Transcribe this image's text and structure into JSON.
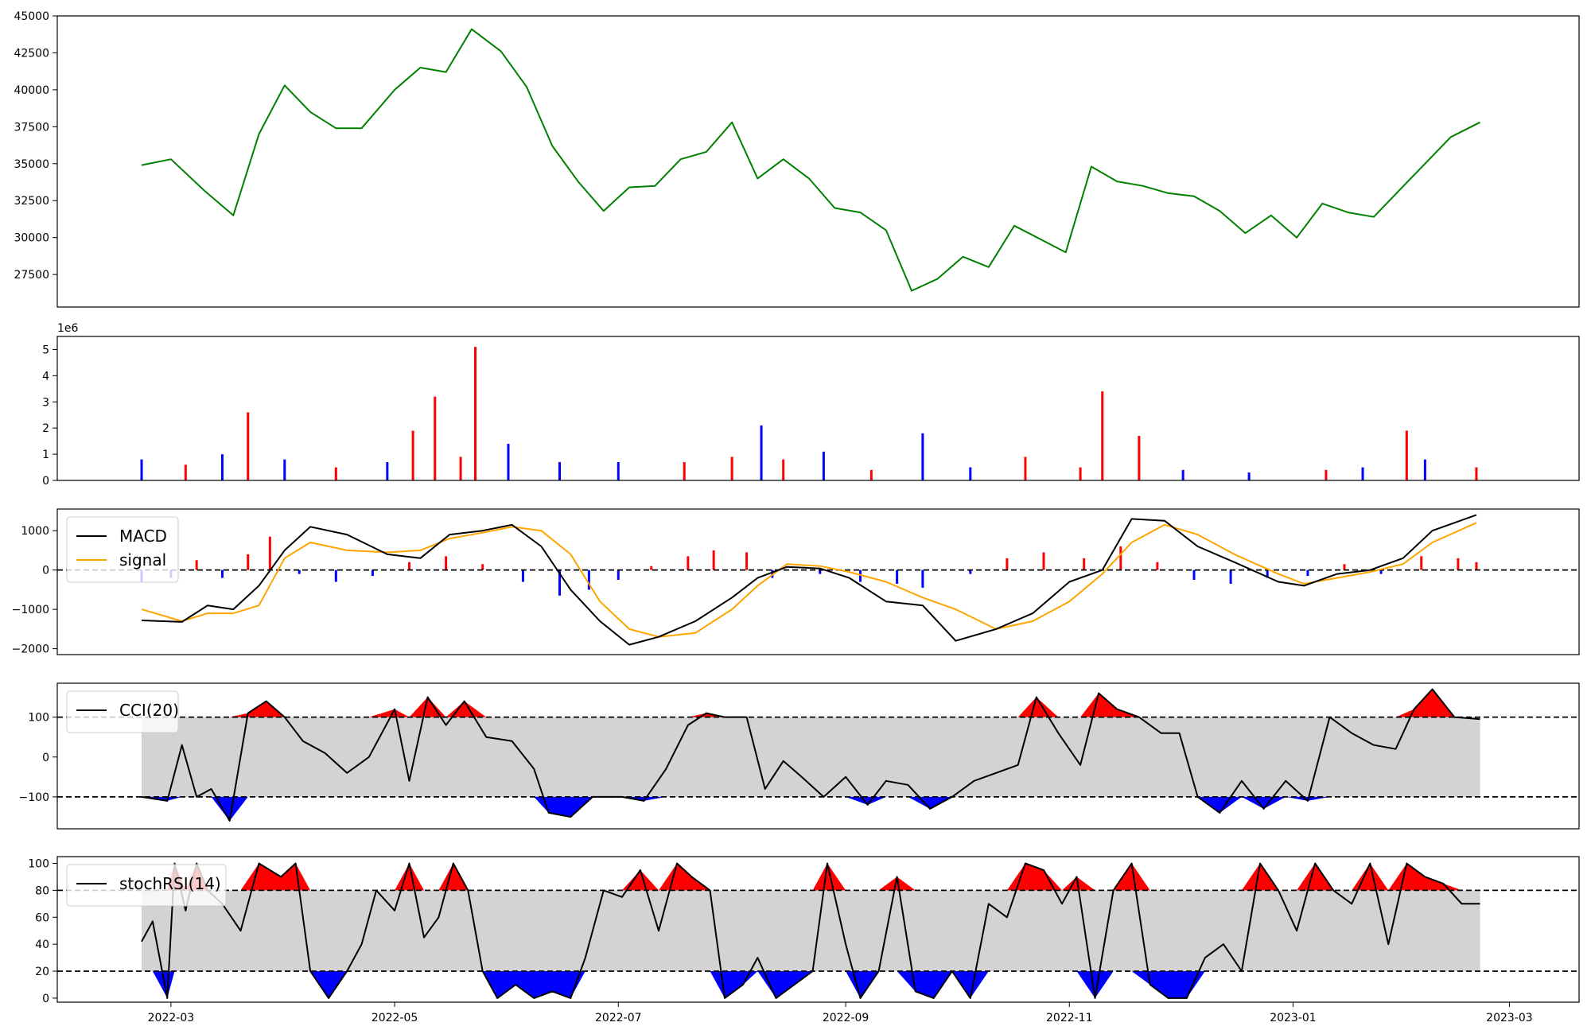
{
  "chart_data": [
    {
      "panel": "price",
      "type": "line",
      "color": "#008000",
      "ylim": [
        25300,
        45000
      ],
      "yticks": [
        27500,
        30000,
        32500,
        35000,
        37500,
        40000,
        42500,
        45000
      ],
      "x": [
        "2022-02-21",
        "2022-03-01",
        "2022-03-10",
        "2022-03-18",
        "2022-03-25",
        "2022-04-01",
        "2022-04-08",
        "2022-04-15",
        "2022-04-22",
        "2022-05-01",
        "2022-05-08",
        "2022-05-15",
        "2022-05-22",
        "2022-05-30",
        "2022-06-06",
        "2022-06-13",
        "2022-06-20",
        "2022-06-27",
        "2022-07-04",
        "2022-07-11",
        "2022-07-18",
        "2022-07-25",
        "2022-08-01",
        "2022-08-08",
        "2022-08-15",
        "2022-08-22",
        "2022-08-29",
        "2022-09-05",
        "2022-09-12",
        "2022-09-19",
        "2022-09-26",
        "2022-10-03",
        "2022-10-10",
        "2022-10-17",
        "2022-10-24",
        "2022-10-31",
        "2022-11-07",
        "2022-11-14",
        "2022-11-21",
        "2022-11-28",
        "2022-12-05",
        "2022-12-12",
        "2022-12-19",
        "2022-12-26",
        "2023-01-02",
        "2023-01-09",
        "2023-01-16",
        "2023-01-23",
        "2023-01-30",
        "2023-02-06",
        "2023-02-13",
        "2023-02-21"
      ],
      "values": [
        34900,
        35300,
        33200,
        31500,
        37000,
        40300,
        38500,
        37400,
        37400,
        40000,
        41500,
        41200,
        44100,
        42600,
        40200,
        36200,
        33800,
        31800,
        33400,
        33500,
        35300,
        35800,
        37800,
        34000,
        35300,
        34000,
        32000,
        31700,
        30500,
        26400,
        27200,
        28700,
        28000,
        30800,
        29900,
        29000,
        34800,
        33800,
        33500,
        33000,
        32800,
        31800,
        30300,
        31500,
        30000,
        32300,
        31700,
        31400,
        33200,
        35000,
        36800,
        37800
      ]
    },
    {
      "panel": "volume",
      "type": "bar",
      "ylim": [
        0,
        5.5
      ],
      "yticks": [
        0,
        1,
        2,
        3,
        4,
        5
      ],
      "exponent_label": "1e6",
      "color_up": "#ff0000",
      "color_down": "#0000ff",
      "x": [
        "2022-02-21",
        "2022-03-05",
        "2022-03-15",
        "2022-03-22",
        "2022-04-01",
        "2022-04-15",
        "2022-04-29",
        "2022-05-06",
        "2022-05-12",
        "2022-05-19",
        "2022-05-23",
        "2022-06-01",
        "2022-06-15",
        "2022-07-01",
        "2022-07-19",
        "2022-08-01",
        "2022-08-09",
        "2022-08-15",
        "2022-08-26",
        "2022-09-08",
        "2022-09-22",
        "2022-10-05",
        "2022-10-20",
        "2022-11-04",
        "2022-11-10",
        "2022-11-20",
        "2022-12-02",
        "2022-12-20",
        "2023-01-10",
        "2023-01-20",
        "2023-02-01",
        "2023-02-06",
        "2023-02-20"
      ],
      "values": [
        0.8,
        0.6,
        1.0,
        2.6,
        0.8,
        0.5,
        0.7,
        1.9,
        3.2,
        0.9,
        5.1,
        1.4,
        0.7,
        0.7,
        0.7,
        0.9,
        2.1,
        0.8,
        1.1,
        0.4,
        1.8,
        0.5,
        0.9,
        0.5,
        3.4,
        1.7,
        0.4,
        0.3,
        0.4,
        0.5,
        1.9,
        0.8,
        0.5
      ],
      "up": [
        false,
        true,
        false,
        true,
        false,
        true,
        false,
        true,
        true,
        true,
        true,
        false,
        false,
        false,
        true,
        true,
        false,
        true,
        false,
        true,
        false,
        false,
        true,
        true,
        true,
        true,
        false,
        false,
        true,
        false,
        true,
        false,
        true
      ]
    },
    {
      "panel": "macd",
      "type": "line",
      "ylim": [
        -2150,
        1550
      ],
      "yticks": [
        -2000,
        -1000,
        0,
        1000
      ],
      "series": [
        {
          "name": "MACD",
          "color": "#000000",
          "x": [
            "2022-02-21",
            "2022-03-04",
            "2022-03-11",
            "2022-03-18",
            "2022-03-25",
            "2022-04-01",
            "2022-04-08",
            "2022-04-18",
            "2022-04-29",
            "2022-05-08",
            "2022-05-16",
            "2022-05-25",
            "2022-06-02",
            "2022-06-10",
            "2022-06-18",
            "2022-06-26",
            "2022-07-04",
            "2022-07-12",
            "2022-07-22",
            "2022-08-01",
            "2022-08-08",
            "2022-08-16",
            "2022-08-25",
            "2022-09-02",
            "2022-09-12",
            "2022-09-22",
            "2022-10-01",
            "2022-10-12",
            "2022-10-22",
            "2022-11-01",
            "2022-11-10",
            "2022-11-18",
            "2022-11-27",
            "2022-12-06",
            "2022-12-16",
            "2022-12-28",
            "2023-01-04",
            "2023-01-13",
            "2023-01-22",
            "2023-01-31",
            "2023-02-08",
            "2023-02-20"
          ],
          "values": [
            -1280,
            -1320,
            -900,
            -1000,
            -400,
            500,
            1100,
            900,
            400,
            300,
            900,
            1000,
            1150,
            600,
            -500,
            -1300,
            -1900,
            -1700,
            -1300,
            -700,
            -200,
            80,
            40,
            -200,
            -800,
            -900,
            -1800,
            -1500,
            -1100,
            -300,
            0,
            1300,
            1250,
            600,
            200,
            -300,
            -400,
            -100,
            0,
            300,
            1000,
            1400
          ]
        },
        {
          "name": "signal",
          "color": "#ffa500",
          "x": [
            "2022-02-21",
            "2022-03-04",
            "2022-03-11",
            "2022-03-18",
            "2022-03-25",
            "2022-04-01",
            "2022-04-08",
            "2022-04-18",
            "2022-04-29",
            "2022-05-08",
            "2022-05-16",
            "2022-05-25",
            "2022-06-02",
            "2022-06-10",
            "2022-06-18",
            "2022-06-26",
            "2022-07-04",
            "2022-07-12",
            "2022-07-22",
            "2022-08-01",
            "2022-08-08",
            "2022-08-16",
            "2022-08-25",
            "2022-09-02",
            "2022-09-12",
            "2022-09-22",
            "2022-10-01",
            "2022-10-12",
            "2022-10-22",
            "2022-11-01",
            "2022-11-10",
            "2022-11-18",
            "2022-11-27",
            "2022-12-06",
            "2022-12-16",
            "2022-12-28",
            "2023-01-04",
            "2023-01-13",
            "2023-01-22",
            "2023-01-31",
            "2023-02-08",
            "2023-02-20"
          ],
          "values": [
            -1000,
            -1300,
            -1100,
            -1100,
            -900,
            300,
            700,
            500,
            450,
            500,
            800,
            950,
            1100,
            1000,
            400,
            -800,
            -1500,
            -1700,
            -1600,
            -1000,
            -400,
            150,
            100,
            -50,
            -300,
            -700,
            -1000,
            -1500,
            -1300,
            -800,
            -100,
            700,
            1150,
            900,
            400,
            -100,
            -350,
            -200,
            -50,
            150,
            700,
            1200
          ]
        },
        {
          "name": "hist",
          "type": "bar",
          "color_up": "#ff0000",
          "color_down": "#0000ff",
          "x": [
            "2022-02-21",
            "2022-03-01",
            "2022-03-08",
            "2022-03-15",
            "2022-03-22",
            "2022-03-28",
            "2022-04-05",
            "2022-04-15",
            "2022-04-25",
            "2022-05-05",
            "2022-05-15",
            "2022-05-25",
            "2022-06-05",
            "2022-06-15",
            "2022-06-23",
            "2022-07-01",
            "2022-07-10",
            "2022-07-20",
            "2022-07-27",
            "2022-08-05",
            "2022-08-12",
            "2022-08-25",
            "2022-09-05",
            "2022-09-15",
            "2022-09-22",
            "2022-10-05",
            "2022-10-15",
            "2022-10-25",
            "2022-11-05",
            "2022-11-15",
            "2022-11-25",
            "2022-12-05",
            "2022-12-15",
            "2022-12-25",
            "2023-01-05",
            "2023-01-15",
            "2023-01-25",
            "2023-02-05",
            "2023-02-15",
            "2023-02-20"
          ],
          "values": [
            -300,
            -200,
            250,
            -200,
            400,
            850,
            -100,
            -300,
            -150,
            200,
            350,
            150,
            -300,
            -650,
            -500,
            -250,
            100,
            350,
            500,
            450,
            -200,
            -100,
            -300,
            -350,
            -450,
            -100,
            300,
            450,
            300,
            600,
            200,
            -250,
            -350,
            -200,
            -150,
            150,
            -100,
            350,
            300,
            200
          ]
        }
      ],
      "zero_line": 0
    },
    {
      "panel": "cci",
      "type": "line",
      "ylim": [
        -180,
        185
      ],
      "yticks": [
        -100,
        0,
        100
      ],
      "series": [
        {
          "name": "CCI(20)",
          "color": "#000000",
          "x": [
            "2022-02-21",
            "2022-02-28",
            "2022-03-04",
            "2022-03-08",
            "2022-03-12",
            "2022-03-17",
            "2022-03-22",
            "2022-03-27",
            "2022-04-01",
            "2022-04-06",
            "2022-04-12",
            "2022-04-18",
            "2022-04-24",
            "2022-05-01",
            "2022-05-05",
            "2022-05-10",
            "2022-05-15",
            "2022-05-20",
            "2022-05-26",
            "2022-06-02",
            "2022-06-08",
            "2022-06-12",
            "2022-06-18",
            "2022-06-24",
            "2022-07-02",
            "2022-07-08",
            "2022-07-14",
            "2022-07-20",
            "2022-07-25",
            "2022-07-30",
            "2022-08-05",
            "2022-08-10",
            "2022-08-15",
            "2022-08-20",
            "2022-08-26",
            "2022-09-01",
            "2022-09-07",
            "2022-09-12",
            "2022-09-18",
            "2022-09-24",
            "2022-09-30",
            "2022-10-06",
            "2022-10-12",
            "2022-10-18",
            "2022-10-23",
            "2022-10-29",
            "2022-11-04",
            "2022-11-09",
            "2022-11-14",
            "2022-11-20",
            "2022-11-26",
            "2022-12-01",
            "2022-12-06",
            "2022-12-12",
            "2022-12-18",
            "2022-12-24",
            "2022-12-30",
            "2023-01-05",
            "2023-01-11",
            "2023-01-17",
            "2023-01-23",
            "2023-01-29",
            "2023-02-03",
            "2023-02-08",
            "2023-02-14",
            "2023-02-21"
          ],
          "values": [
            -100,
            -110,
            30,
            -100,
            -80,
            -160,
            110,
            140,
            100,
            40,
            10,
            -40,
            0,
            120,
            -60,
            150,
            80,
            140,
            50,
            40,
            -30,
            -140,
            -150,
            -100,
            -100,
            -110,
            -30,
            80,
            110,
            100,
            100,
            -80,
            -10,
            -50,
            -100,
            -50,
            -120,
            -60,
            -70,
            -130,
            -100,
            -60,
            -40,
            -20,
            150,
            60,
            -20,
            160,
            120,
            100,
            60,
            60,
            -100,
            -140,
            -60,
            -130,
            -60,
            -110,
            100,
            60,
            30,
            20,
            120,
            170,
            100,
            95
          ]
        }
      ],
      "upper": 100,
      "lower": -100
    },
    {
      "panel": "stochrsi",
      "type": "line",
      "ylim": [
        -3,
        105
      ],
      "yticks": [
        0,
        20,
        40,
        60,
        80,
        100
      ],
      "series": [
        {
          "name": "stochRSI(14)",
          "color": "#000000",
          "x": [
            "2022-02-21",
            "2022-02-24",
            "2022-02-28",
            "2022-03-02",
            "2022-03-05",
            "2022-03-08",
            "2022-03-11",
            "2022-03-15",
            "2022-03-20",
            "2022-03-25",
            "2022-03-31",
            "2022-04-04",
            "2022-04-08",
            "2022-04-13",
            "2022-04-18",
            "2022-04-22",
            "2022-04-26",
            "2022-05-01",
            "2022-05-05",
            "2022-05-09",
            "2022-05-13",
            "2022-05-17",
            "2022-05-21",
            "2022-05-25",
            "2022-05-29",
            "2022-06-03",
            "2022-06-08",
            "2022-06-13",
            "2022-06-18",
            "2022-06-22",
            "2022-06-27",
            "2022-07-02",
            "2022-07-07",
            "2022-07-12",
            "2022-07-17",
            "2022-07-21",
            "2022-07-26",
            "2022-07-30",
            "2022-08-04",
            "2022-08-08",
            "2022-08-13",
            "2022-08-18",
            "2022-08-23",
            "2022-08-27",
            "2022-09-01",
            "2022-09-05",
            "2022-09-10",
            "2022-09-15",
            "2022-09-20",
            "2022-09-25",
            "2022-09-30",
            "2022-10-05",
            "2022-10-10",
            "2022-10-15",
            "2022-10-20",
            "2022-10-25",
            "2022-10-30",
            "2022-11-03",
            "2022-11-08",
            "2022-11-13",
            "2022-11-18",
            "2022-11-23",
            "2022-11-28",
            "2022-12-03",
            "2022-12-08",
            "2022-12-13",
            "2022-12-18",
            "2022-12-23",
            "2022-12-28",
            "2023-01-02",
            "2023-01-07",
            "2023-01-12",
            "2023-01-17",
            "2023-01-22",
            "2023-01-27",
            "2023-02-01",
            "2023-02-06",
            "2023-02-11",
            "2023-02-16",
            "2023-02-21"
          ],
          "values": [
            42,
            57,
            0,
            100,
            65,
            100,
            80,
            70,
            50,
            100,
            90,
            100,
            20,
            0,
            20,
            40,
            80,
            65,
            100,
            45,
            60,
            100,
            80,
            20,
            0,
            10,
            0,
            5,
            0,
            30,
            80,
            75,
            95,
            50,
            100,
            90,
            80,
            0,
            10,
            30,
            0,
            10,
            20,
            100,
            40,
            0,
            20,
            90,
            5,
            0,
            20,
            0,
            70,
            60,
            100,
            95,
            70,
            90,
            0,
            80,
            100,
            10,
            0,
            0,
            30,
            40,
            20,
            100,
            80,
            50,
            100,
            80,
            70,
            100,
            40,
            100,
            90,
            85,
            70,
            70
          ]
        }
      ],
      "upper": 80,
      "lower": 20
    }
  ],
  "xaxis": {
    "ticks": [
      "2022-03",
      "2022-05",
      "2022-07",
      "2022-09",
      "2022-11",
      "2023-01",
      "2023-03"
    ],
    "range": [
      "2022-01-29",
      "2023-03-20"
    ]
  }
}
